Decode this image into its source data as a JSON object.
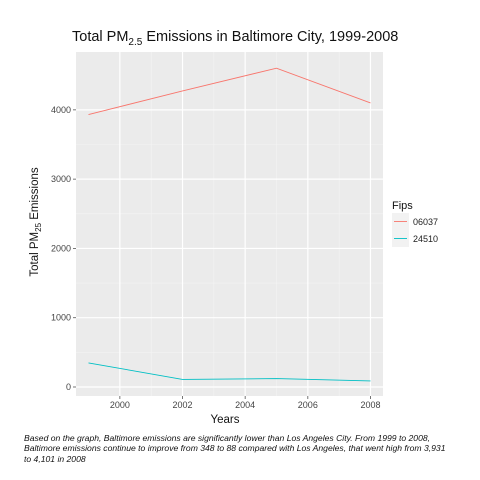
{
  "chart_data": {
    "type": "line",
    "title": {
      "prefix": "Total PM",
      "subscript": "2.5",
      "suffix": " Emissions in Baltimore City, 1999-2008"
    },
    "xlabel": "Years",
    "ylabel": {
      "prefix": "Total PM",
      "subscript": "25",
      "suffix": " Emissions"
    },
    "x_ticks": [
      2000,
      2002,
      2004,
      2006,
      2008
    ],
    "y_ticks": [
      0,
      1000,
      2000,
      3000,
      4000
    ],
    "xlim": [
      1998.6,
      2008.4
    ],
    "ylim": [
      -130,
      4835
    ],
    "grid": true,
    "background": "#ebebeb",
    "legend": {
      "title": "Fips",
      "placement": "right"
    },
    "series": [
      {
        "name": "06037",
        "color": "#f8766d",
        "x": [
          1999,
          2002,
          2005,
          2008
        ],
        "y": [
          3931,
          4274,
          4601,
          4101
        ]
      },
      {
        "name": "24510",
        "color": "#00bfc4",
        "x": [
          1999,
          2002,
          2005,
          2008
        ],
        "y": [
          348,
          110,
          121,
          88
        ]
      }
    ]
  },
  "caption": "Based on the graph, Baltimore emissions are significantly lower than Los Angeles City. From 1999 to 2008, Baltimore emissions continue to improve from 348 to 88 compared with Los Angeles, that went high from 3,931 to 4,101 in 2008"
}
